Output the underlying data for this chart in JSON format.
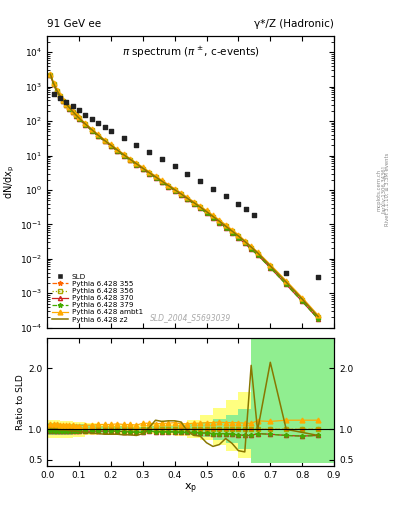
{
  "title_left": "91 GeV ee",
  "title_right": "γ*/Z (Hadronic)",
  "ylabel_main": "dN/dx_p",
  "ylabel_ratio": "Ratio to SLD",
  "xlabel": "x_p",
  "plot_title": "π spectrum (π±, c-events)",
  "watermark": "SLD_2004_S5693039",
  "right_label_top": "Rivet 3.1.10; ≥ 3.3M events",
  "right_label_mid": "[arXiv:1306.3436]",
  "right_label_bot": "mcplots.cern.ch",
  "ylim_main": [
    0.0001,
    30000.0
  ],
  "xlim": [
    0.0,
    0.9
  ],
  "ylim_ratio": [
    0.4,
    2.5
  ],
  "ratio_yticks": [
    0.5,
    1.0,
    2.0
  ],
  "sld_x": [
    0.02,
    0.04,
    0.06,
    0.08,
    0.1,
    0.12,
    0.14,
    0.16,
    0.18,
    0.2,
    0.24,
    0.28,
    0.32,
    0.36,
    0.4,
    0.44,
    0.48,
    0.52,
    0.56,
    0.6,
    0.625,
    0.65,
    0.75,
    0.85
  ],
  "sld_y": [
    600,
    480,
    360,
    270,
    205,
    155,
    118,
    90,
    68,
    52,
    32,
    20,
    12.5,
    7.8,
    4.9,
    3.0,
    1.85,
    1.1,
    0.65,
    0.38,
    0.28,
    0.19,
    0.004,
    0.003
  ],
  "mc_x": [
    0.01,
    0.02,
    0.03,
    0.04,
    0.05,
    0.06,
    0.07,
    0.08,
    0.09,
    0.1,
    0.12,
    0.14,
    0.16,
    0.18,
    0.2,
    0.22,
    0.24,
    0.26,
    0.28,
    0.3,
    0.32,
    0.34,
    0.36,
    0.38,
    0.4,
    0.42,
    0.44,
    0.46,
    0.48,
    0.5,
    0.52,
    0.54,
    0.56,
    0.58,
    0.6,
    0.62,
    0.64,
    0.66,
    0.7,
    0.75,
    0.8,
    0.85
  ],
  "p355_y": [
    2200,
    1200,
    760,
    530,
    390,
    300,
    235,
    185,
    148,
    120,
    80,
    55,
    38,
    27,
    19.5,
    14.0,
    10.3,
    7.6,
    5.7,
    4.2,
    3.1,
    2.35,
    1.75,
    1.31,
    0.99,
    0.75,
    0.56,
    0.42,
    0.31,
    0.23,
    0.168,
    0.121,
    0.088,
    0.063,
    0.045,
    0.031,
    0.021,
    0.014,
    0.006,
    0.002,
    0.00065,
    0.0002
  ],
  "p356_y": [
    2200,
    1200,
    760,
    530,
    390,
    300,
    235,
    185,
    148,
    120,
    80,
    55,
    38,
    27,
    19.5,
    14.0,
    10.3,
    7.6,
    5.7,
    4.2,
    3.1,
    2.35,
    1.75,
    1.31,
    0.99,
    0.75,
    0.56,
    0.42,
    0.31,
    0.23,
    0.168,
    0.121,
    0.088,
    0.063,
    0.045,
    0.031,
    0.021,
    0.014,
    0.006,
    0.002,
    0.00065,
    0.0002
  ],
  "p370_y": [
    2150,
    1170,
    740,
    515,
    378,
    292,
    228,
    180,
    143,
    115,
    77,
    53,
    36.5,
    26,
    18.8,
    13.5,
    9.9,
    7.3,
    5.4,
    4.0,
    3.0,
    2.25,
    1.68,
    1.26,
    0.95,
    0.71,
    0.53,
    0.4,
    0.29,
    0.215,
    0.156,
    0.113,
    0.081,
    0.058,
    0.041,
    0.028,
    0.019,
    0.013,
    0.0055,
    0.0018,
    0.00058,
    0.00018
  ],
  "p379_y": [
    2150,
    1170,
    740,
    515,
    378,
    292,
    228,
    180,
    143,
    115,
    77,
    53,
    36.5,
    26,
    18.8,
    13.5,
    9.9,
    7.3,
    5.4,
    4.0,
    3.0,
    2.25,
    1.68,
    1.26,
    0.95,
    0.71,
    0.53,
    0.4,
    0.29,
    0.215,
    0.156,
    0.113,
    0.081,
    0.058,
    0.041,
    0.028,
    0.019,
    0.013,
    0.0055,
    0.0018,
    0.00058,
    0.00018
  ],
  "ambt1_y": [
    2400,
    1300,
    820,
    570,
    418,
    322,
    252,
    198,
    158,
    128,
    86,
    59,
    41,
    29,
    21,
    15.2,
    11.1,
    8.2,
    6.1,
    4.6,
    3.4,
    2.56,
    1.92,
    1.44,
    1.09,
    0.82,
    0.61,
    0.46,
    0.34,
    0.255,
    0.186,
    0.135,
    0.098,
    0.07,
    0.05,
    0.034,
    0.023,
    0.016,
    0.0068,
    0.0023,
    0.00075,
    0.00023
  ],
  "z2_y": [
    2300,
    1250,
    790,
    550,
    404,
    311,
    243,
    191,
    152,
    123,
    82,
    56.5,
    39,
    27.5,
    20,
    14.5,
    10.6,
    7.8,
    5.8,
    4.3,
    3.2,
    2.4,
    1.8,
    1.35,
    1.02,
    0.77,
    0.57,
    0.43,
    0.32,
    0.235,
    0.171,
    0.124,
    0.089,
    0.064,
    0.046,
    0.032,
    0.022,
    0.015,
    0.0062,
    0.0021,
    0.00068,
    0.00021
  ],
  "colors": {
    "sld": "#222222",
    "p355": "#ff6600",
    "p356": "#aaaa00",
    "p370": "#cc2222",
    "p379": "#44aa00",
    "ambt1": "#ffaa00",
    "z2": "#887700"
  },
  "band_yellow_edges": [
    0.0,
    0.04,
    0.08,
    0.12,
    0.16,
    0.2,
    0.24,
    0.28,
    0.32,
    0.36,
    0.4,
    0.44,
    0.48,
    0.52,
    0.56,
    0.6,
    0.64,
    0.9
  ],
  "band_yellow_lo": [
    0.85,
    0.86,
    0.88,
    0.9,
    0.92,
    0.93,
    0.93,
    0.93,
    0.92,
    0.91,
    0.89,
    0.86,
    0.82,
    0.75,
    0.65,
    0.53,
    0.45,
    0.45
  ],
  "band_yellow_hi": [
    1.15,
    1.14,
    1.12,
    1.1,
    1.08,
    1.07,
    1.07,
    1.07,
    1.08,
    1.09,
    1.11,
    1.16,
    1.24,
    1.35,
    1.48,
    1.62,
    2.5,
    2.5
  ],
  "band_green_edges": [
    0.0,
    0.04,
    0.08,
    0.12,
    0.16,
    0.2,
    0.24,
    0.28,
    0.32,
    0.36,
    0.4,
    0.44,
    0.48,
    0.52,
    0.56,
    0.6,
    0.64,
    0.9
  ],
  "band_green_lo": [
    0.9,
    0.91,
    0.92,
    0.93,
    0.94,
    0.95,
    0.96,
    0.96,
    0.95,
    0.94,
    0.93,
    0.91,
    0.88,
    0.83,
    0.77,
    0.67,
    0.45,
    0.45
  ],
  "band_green_hi": [
    1.1,
    1.09,
    1.08,
    1.07,
    1.06,
    1.05,
    1.04,
    1.04,
    1.05,
    1.06,
    1.07,
    1.09,
    1.12,
    1.17,
    1.23,
    1.33,
    2.5,
    2.5
  ],
  "ratio_x": [
    0.01,
    0.02,
    0.03,
    0.04,
    0.05,
    0.06,
    0.07,
    0.08,
    0.09,
    0.1,
    0.12,
    0.14,
    0.16,
    0.18,
    0.2,
    0.22,
    0.24,
    0.26,
    0.28,
    0.3,
    0.32,
    0.34,
    0.36,
    0.38,
    0.4,
    0.42,
    0.44,
    0.46,
    0.48,
    0.5,
    0.52,
    0.54,
    0.56,
    0.58,
    0.6,
    0.62,
    0.64,
    0.66,
    0.7,
    0.75,
    0.8,
    0.85
  ],
  "r355": [
    1.05,
    1.04,
    1.03,
    1.02,
    1.01,
    1.01,
    1.0,
    1.0,
    1.0,
    1.0,
    1.0,
    1.0,
    1.0,
    1.0,
    1.0,
    1.0,
    1.0,
    1.0,
    1.0,
    1.0,
    1.0,
    1.0,
    1.0,
    1.0,
    1.0,
    1.0,
    1.0,
    1.0,
    1.0,
    1.0,
    1.0,
    1.0,
    1.0,
    1.0,
    1.0,
    1.0,
    1.0,
    1.0,
    1.0,
    1.0,
    1.0,
    1.0
  ],
  "r356": [
    1.05,
    1.04,
    1.03,
    1.02,
    1.01,
    1.01,
    1.0,
    1.0,
    1.0,
    1.0,
    1.0,
    1.0,
    1.0,
    1.0,
    1.0,
    1.0,
    1.0,
    1.0,
    1.0,
    1.0,
    1.0,
    1.0,
    1.0,
    1.0,
    1.0,
    1.0,
    1.0,
    1.0,
    1.0,
    1.0,
    1.0,
    1.0,
    1.0,
    1.0,
    1.0,
    1.0,
    1.0,
    1.0,
    1.0,
    1.0,
    1.0,
    1.0
  ],
  "r370": [
    0.98,
    0.97,
    0.97,
    0.97,
    0.97,
    0.97,
    0.97,
    0.97,
    0.97,
    0.97,
    0.97,
    0.97,
    0.97,
    0.97,
    0.97,
    0.97,
    0.96,
    0.96,
    0.95,
    0.95,
    0.97,
    0.96,
    0.96,
    0.96,
    0.96,
    0.95,
    0.95,
    0.95,
    0.94,
    0.94,
    0.93,
    0.93,
    0.93,
    0.92,
    0.91,
    0.9,
    0.9,
    0.93,
    0.92,
    0.9,
    0.89,
    0.9
  ],
  "r379": [
    0.98,
    0.97,
    0.97,
    0.97,
    0.97,
    0.97,
    0.97,
    0.97,
    0.97,
    0.97,
    0.97,
    0.97,
    0.97,
    0.97,
    0.97,
    0.97,
    0.96,
    0.96,
    0.95,
    0.95,
    0.97,
    0.96,
    0.96,
    0.96,
    0.96,
    0.95,
    0.95,
    0.95,
    0.94,
    0.94,
    0.93,
    0.93,
    0.93,
    0.92,
    0.91,
    0.9,
    0.9,
    0.93,
    0.92,
    0.9,
    0.89,
    0.9
  ],
  "r_ambt1": [
    1.09,
    1.08,
    1.08,
    1.07,
    1.07,
    1.07,
    1.07,
    1.07,
    1.06,
    1.06,
    1.07,
    1.07,
    1.08,
    1.08,
    1.08,
    1.09,
    1.08,
    1.08,
    1.07,
    1.1,
    1.1,
    1.09,
    1.1,
    1.1,
    1.11,
    1.09,
    1.09,
    1.1,
    1.1,
    1.11,
    1.11,
    1.12,
    1.11,
    1.11,
    1.11,
    1.1,
    1.1,
    1.14,
    1.13,
    1.15,
    1.15,
    1.15
  ],
  "r_z2": [
    1.0,
    1.0,
    1.0,
    0.99,
    0.99,
    0.99,
    0.98,
    0.97,
    0.97,
    0.96,
    0.95,
    0.94,
    0.93,
    0.92,
    0.92,
    0.92,
    0.91,
    0.91,
    0.9,
    0.93,
    1.03,
    1.15,
    1.13,
    1.14,
    1.14,
    1.12,
    0.97,
    0.9,
    0.89,
    0.78,
    0.72,
    0.75,
    0.85,
    0.77,
    0.65,
    0.63,
    2.05,
    0.98,
    2.1,
    1.0,
    0.95,
    0.9
  ]
}
